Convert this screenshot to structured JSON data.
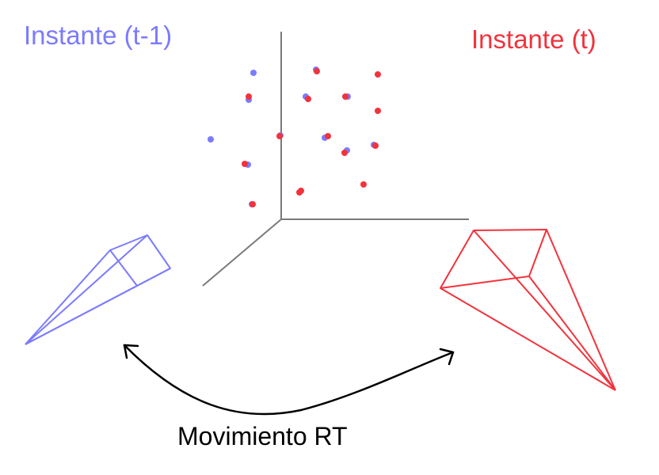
{
  "labels": {
    "previous_instant": "Instante (t-1)",
    "current_instant": "Instante (t)",
    "motion": "Movimiento RT"
  },
  "colors": {
    "previous": "#7b7bff",
    "current": "#f2333c",
    "axes": "#7a7a7a",
    "motion_arrow": "#000000",
    "motion_label": "#000000"
  },
  "icons": {
    "previous_camera": "camera-frustum-icon",
    "current_camera": "camera-frustum-icon",
    "motion_arrow": "double-headed-curved-arrow-icon"
  }
}
